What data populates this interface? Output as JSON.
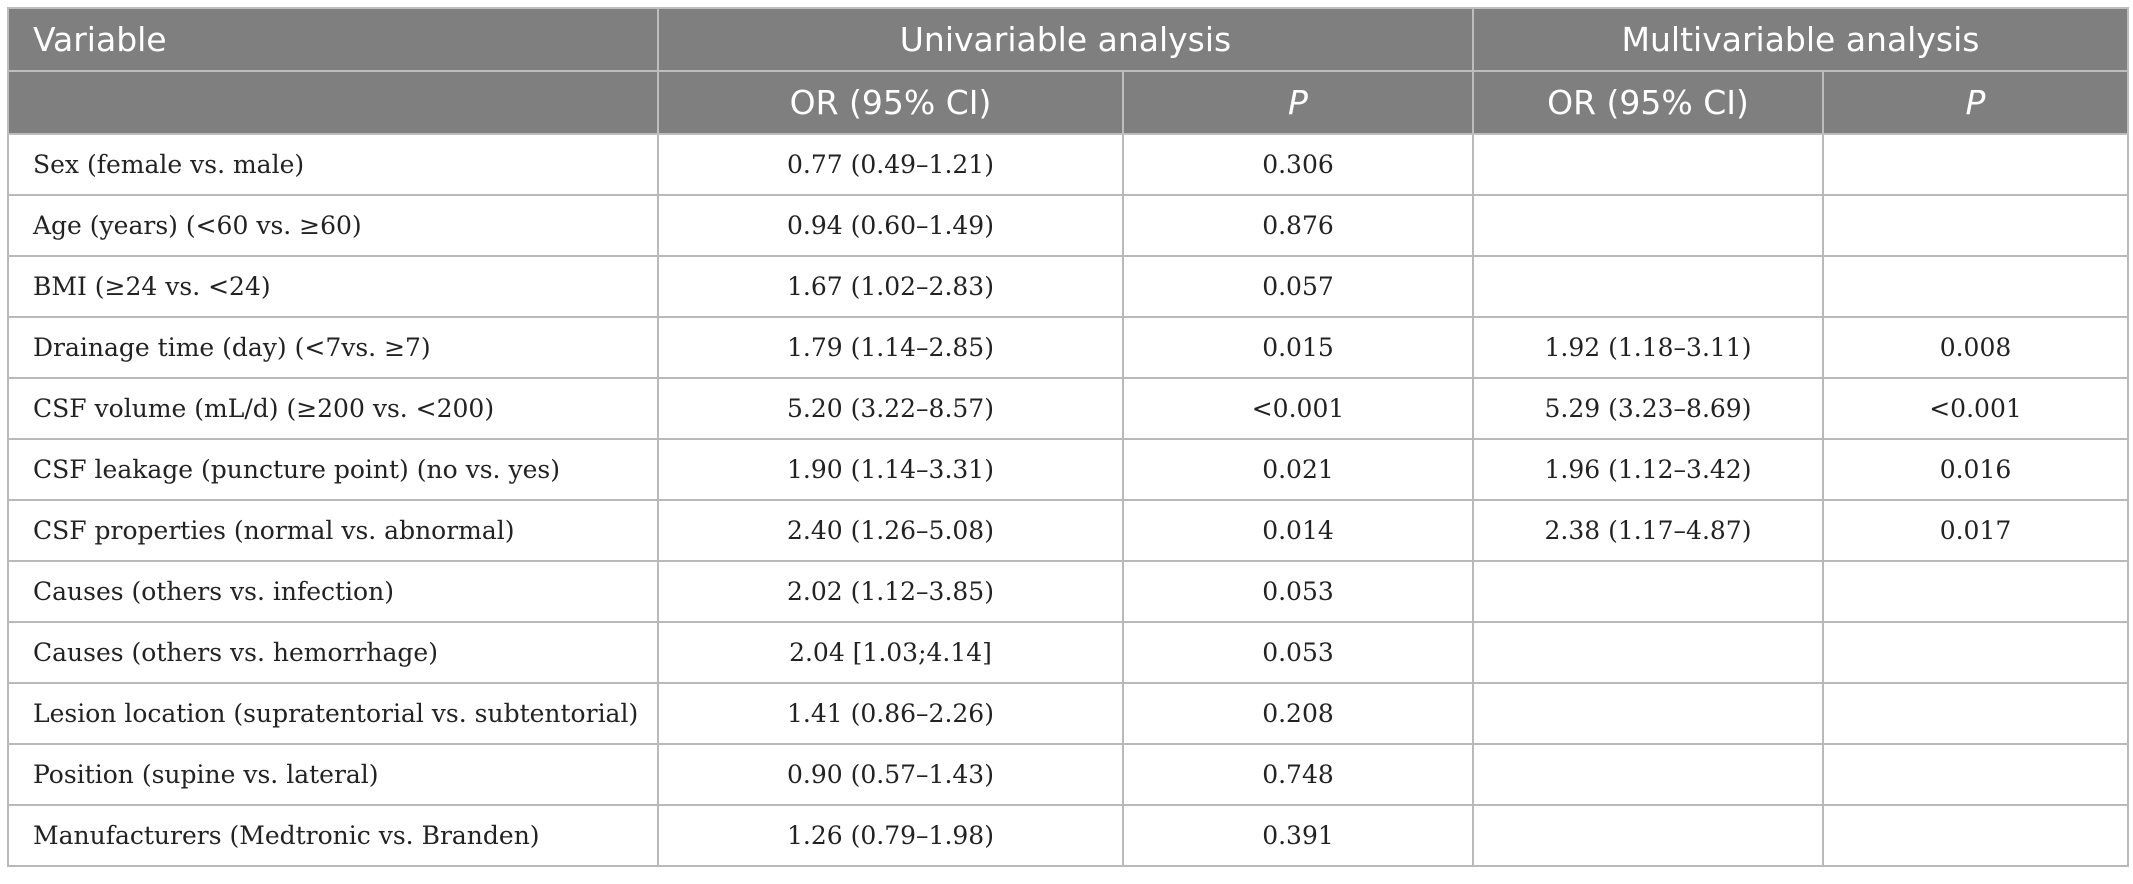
{
  "header": {
    "row1": {
      "variable": "Variable",
      "univariable": "Univariable analysis",
      "multivariable": "Multivariable analysis"
    },
    "row2": {
      "uni_or": "OR (95% CI)",
      "uni_p": "P",
      "multi_or": "OR (95% CI)",
      "multi_p": "P"
    }
  },
  "rows": [
    {
      "variable": "Sex (female vs. male)",
      "uni_or": "0.77 (0.49–1.21)",
      "uni_p": "0.306",
      "multi_or": "",
      "multi_p": ""
    },
    {
      "variable": "Age (years) (<60 vs. ≥60)",
      "uni_or": "0.94 (0.60–1.49)",
      "uni_p": "0.876",
      "multi_or": "",
      "multi_p": ""
    },
    {
      "variable": "BMI (≥24 vs. <24)",
      "uni_or": "1.67 (1.02–2.83)",
      "uni_p": "0.057",
      "multi_or": "",
      "multi_p": ""
    },
    {
      "variable": "Drainage time (day) (<7vs. ≥7)",
      "uni_or": "1.79 (1.14–2.85)",
      "uni_p": "0.015",
      "multi_or": "1.92 (1.18–3.11)",
      "multi_p": "0.008"
    },
    {
      "variable": "CSF volume (mL/d) (≥200 vs. <200)",
      "uni_or": "5.20 (3.22–8.57)",
      "uni_p": "<0.001",
      "multi_or": "5.29 (3.23–8.69)",
      "multi_p": "<0.001"
    },
    {
      "variable": "CSF leakage (puncture point) (no vs. yes)",
      "uni_or": "1.90 (1.14–3.31)",
      "uni_p": "0.021",
      "multi_or": "1.96 (1.12–3.42)",
      "multi_p": "0.016"
    },
    {
      "variable": "CSF properties (normal vs. abnormal)",
      "uni_or": "2.40 (1.26–5.08)",
      "uni_p": "0.014",
      "multi_or": "2.38 (1.17–4.87)",
      "multi_p": "0.017"
    },
    {
      "variable": "Causes (others vs. infection)",
      "uni_or": "2.02 (1.12–3.85)",
      "uni_p": "0.053",
      "multi_or": "",
      "multi_p": ""
    },
    {
      "variable": "Causes (others vs. hemorrhage)",
      "uni_or": "2.04 [1.03;4.14]",
      "uni_p": "0.053",
      "multi_or": "",
      "multi_p": ""
    },
    {
      "variable": "Lesion location (supratentorial vs. subtentorial)",
      "uni_or": "1.41 (0.86–2.26)",
      "uni_p": "0.208",
      "multi_or": "",
      "multi_p": ""
    },
    {
      "variable": "Position (supine vs. lateral)",
      "uni_or": "0.90 (0.57–1.43)",
      "uni_p": "0.748",
      "multi_or": "",
      "multi_p": ""
    },
    {
      "variable": "Manufacturers (Medtronic vs. Branden)",
      "uni_or": "1.26 (0.79–1.98)",
      "uni_p": "0.391",
      "multi_or": "",
      "multi_p": ""
    }
  ]
}
